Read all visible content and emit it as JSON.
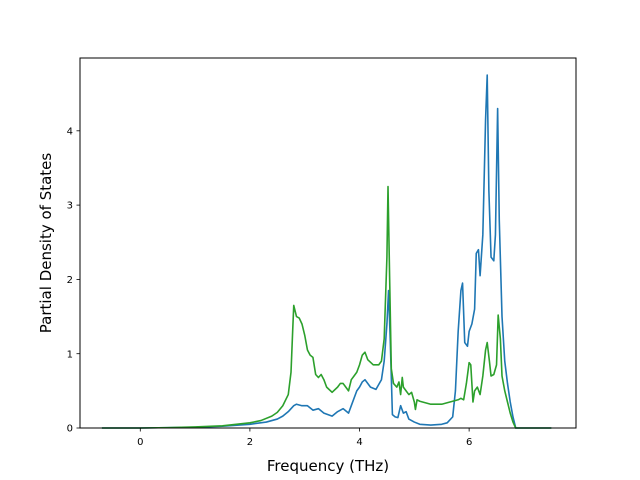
{
  "chart_data": {
    "type": "line",
    "title": "",
    "xlabel": "Frequency (THz)",
    "ylabel": "Partial Density of States",
    "xlim": [
      -1.1,
      7.95
    ],
    "ylim": [
      0,
      4.98
    ],
    "xticks": [
      0,
      2,
      4,
      6
    ],
    "yticks": [
      0,
      1,
      2,
      3,
      4
    ],
    "grid": false,
    "legend": "none",
    "series": [
      {
        "color": "#1f77b4",
        "points": [
          [
            -0.7,
            0.0
          ],
          [
            0.0,
            0.0
          ],
          [
            0.5,
            0.005
          ],
          [
            1.0,
            0.01
          ],
          [
            1.5,
            0.025
          ],
          [
            2.0,
            0.05
          ],
          [
            2.3,
            0.08
          ],
          [
            2.5,
            0.12
          ],
          [
            2.6,
            0.16
          ],
          [
            2.7,
            0.22
          ],
          [
            2.8,
            0.3
          ],
          [
            2.85,
            0.32
          ],
          [
            2.95,
            0.3
          ],
          [
            3.05,
            0.3
          ],
          [
            3.15,
            0.24
          ],
          [
            3.25,
            0.26
          ],
          [
            3.35,
            0.2
          ],
          [
            3.5,
            0.16
          ],
          [
            3.6,
            0.22
          ],
          [
            3.7,
            0.26
          ],
          [
            3.8,
            0.2
          ],
          [
            3.85,
            0.3
          ],
          [
            3.95,
            0.5
          ],
          [
            4.0,
            0.55
          ],
          [
            4.05,
            0.62
          ],
          [
            4.1,
            0.65
          ],
          [
            4.2,
            0.55
          ],
          [
            4.3,
            0.52
          ],
          [
            4.4,
            0.65
          ],
          [
            4.45,
            0.9
          ],
          [
            4.5,
            1.4
          ],
          [
            4.53,
            1.85
          ],
          [
            4.56,
            1.2
          ],
          [
            4.6,
            0.18
          ],
          [
            4.65,
            0.15
          ],
          [
            4.7,
            0.14
          ],
          [
            4.75,
            0.3
          ],
          [
            4.8,
            0.2
          ],
          [
            4.85,
            0.22
          ],
          [
            4.9,
            0.12
          ],
          [
            5.0,
            0.08
          ],
          [
            5.1,
            0.05
          ],
          [
            5.3,
            0.04
          ],
          [
            5.5,
            0.05
          ],
          [
            5.6,
            0.07
          ],
          [
            5.7,
            0.15
          ],
          [
            5.75,
            0.5
          ],
          [
            5.8,
            1.3
          ],
          [
            5.85,
            1.85
          ],
          [
            5.88,
            1.95
          ],
          [
            5.92,
            1.15
          ],
          [
            5.97,
            1.1
          ],
          [
            6.0,
            1.3
          ],
          [
            6.05,
            1.4
          ],
          [
            6.1,
            1.6
          ],
          [
            6.13,
            2.35
          ],
          [
            6.17,
            2.4
          ],
          [
            6.2,
            2.05
          ],
          [
            6.25,
            2.6
          ],
          [
            6.3,
            4.15
          ],
          [
            6.33,
            4.75
          ],
          [
            6.36,
            3.2
          ],
          [
            6.4,
            2.3
          ],
          [
            6.45,
            2.25
          ],
          [
            6.48,
            2.6
          ],
          [
            6.52,
            4.3
          ],
          [
            6.55,
            2.8
          ],
          [
            6.6,
            1.5
          ],
          [
            6.65,
            0.9
          ],
          [
            6.7,
            0.6
          ],
          [
            6.75,
            0.35
          ],
          [
            6.8,
            0.15
          ],
          [
            6.85,
            0.0
          ],
          [
            7.5,
            0.0
          ]
        ]
      },
      {
        "color": "#2ca02c",
        "points": [
          [
            -0.7,
            0.0
          ],
          [
            0.0,
            0.0
          ],
          [
            0.5,
            0.005
          ],
          [
            1.0,
            0.015
          ],
          [
            1.5,
            0.03
          ],
          [
            2.0,
            0.07
          ],
          [
            2.2,
            0.1
          ],
          [
            2.4,
            0.16
          ],
          [
            2.5,
            0.21
          ],
          [
            2.6,
            0.3
          ],
          [
            2.7,
            0.45
          ],
          [
            2.75,
            0.75
          ],
          [
            2.78,
            1.3
          ],
          [
            2.8,
            1.65
          ],
          [
            2.85,
            1.5
          ],
          [
            2.9,
            1.48
          ],
          [
            2.95,
            1.4
          ],
          [
            3.0,
            1.25
          ],
          [
            3.05,
            1.05
          ],
          [
            3.1,
            0.98
          ],
          [
            3.15,
            0.95
          ],
          [
            3.2,
            0.72
          ],
          [
            3.25,
            0.68
          ],
          [
            3.3,
            0.72
          ],
          [
            3.35,
            0.65
          ],
          [
            3.4,
            0.55
          ],
          [
            3.5,
            0.48
          ],
          [
            3.6,
            0.55
          ],
          [
            3.65,
            0.6
          ],
          [
            3.7,
            0.6
          ],
          [
            3.75,
            0.55
          ],
          [
            3.8,
            0.5
          ],
          [
            3.85,
            0.65
          ],
          [
            3.9,
            0.7
          ],
          [
            3.95,
            0.75
          ],
          [
            4.0,
            0.85
          ],
          [
            4.05,
            0.98
          ],
          [
            4.1,
            1.02
          ],
          [
            4.15,
            0.92
          ],
          [
            4.25,
            0.85
          ],
          [
            4.35,
            0.85
          ],
          [
            4.4,
            0.9
          ],
          [
            4.45,
            1.2
          ],
          [
            4.5,
            2.3
          ],
          [
            4.52,
            3.25
          ],
          [
            4.55,
            2.0
          ],
          [
            4.58,
            0.8
          ],
          [
            4.62,
            0.6
          ],
          [
            4.68,
            0.55
          ],
          [
            4.72,
            0.62
          ],
          [
            4.75,
            0.45
          ],
          [
            4.78,
            0.68
          ],
          [
            4.8,
            0.55
          ],
          [
            4.85,
            0.5
          ],
          [
            4.9,
            0.45
          ],
          [
            4.95,
            0.48
          ],
          [
            5.0,
            0.35
          ],
          [
            5.02,
            0.25
          ],
          [
            5.05,
            0.38
          ],
          [
            5.1,
            0.36
          ],
          [
            5.3,
            0.32
          ],
          [
            5.5,
            0.32
          ],
          [
            5.65,
            0.35
          ],
          [
            5.8,
            0.38
          ],
          [
            5.85,
            0.4
          ],
          [
            5.9,
            0.38
          ],
          [
            5.95,
            0.6
          ],
          [
            6.0,
            0.88
          ],
          [
            6.03,
            0.85
          ],
          [
            6.07,
            0.35
          ],
          [
            6.1,
            0.5
          ],
          [
            6.15,
            0.55
          ],
          [
            6.2,
            0.45
          ],
          [
            6.25,
            0.7
          ],
          [
            6.3,
            1.05
          ],
          [
            6.33,
            1.15
          ],
          [
            6.37,
            0.9
          ],
          [
            6.4,
            0.7
          ],
          [
            6.45,
            0.72
          ],
          [
            6.5,
            0.85
          ],
          [
            6.53,
            1.52
          ],
          [
            6.57,
            1.2
          ],
          [
            6.6,
            0.7
          ],
          [
            6.65,
            0.5
          ],
          [
            6.7,
            0.35
          ],
          [
            6.75,
            0.2
          ],
          [
            6.8,
            0.08
          ],
          [
            6.85,
            0.0
          ],
          [
            7.5,
            0.0
          ]
        ]
      }
    ]
  }
}
